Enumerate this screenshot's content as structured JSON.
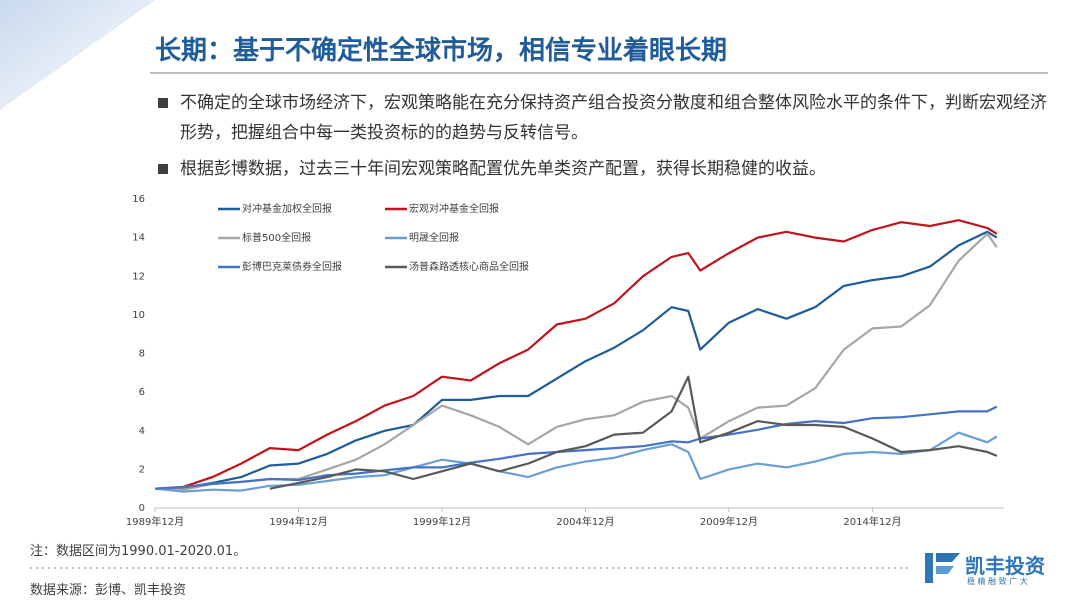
{
  "header": {
    "title": "长期：基于不确定性全球市场，相信专业着眼长期"
  },
  "bullets": [
    "不确定的全球市场经济下，宏观策略能在充分保持资产组合投资分散度和组合整体风险水平的条件下，判断宏观经济形势，把握组合中每一类投资标的的趋势与反转信号。",
    "根据彭博数据，过去三十年间宏观策略配置优先单类资产配置，获得长期稳健的收益。"
  ],
  "notes": [
    "注：数据区间为1990.01-2020.01。",
    "数据来源：彭博、凯丰投资"
  ],
  "logo": {
    "name": "凯丰投资",
    "tagline": "稳 精 融 致 广 大"
  },
  "chart_data": {
    "type": "line",
    "x": [
      1989.917,
      1990.917,
      1991.917,
      1992.917,
      1993.917,
      1994.917,
      1995.917,
      1996.917,
      1997.917,
      1998.917,
      1999.917,
      2000.917,
      2001.917,
      2002.917,
      2003.917,
      2004.917,
      2005.917,
      2006.917,
      2007.917,
      2008.5,
      2008.917,
      2009.917,
      2010.917,
      2011.917,
      2012.917,
      2013.917,
      2014.917,
      2015.917,
      2016.917,
      2017.917,
      2018.917,
      2019.25
    ],
    "series": [
      {
        "name": "对冲基金加权全回报",
        "color": "#1f5c99",
        "values": [
          1,
          1.05,
          1.3,
          1.6,
          2.2,
          2.3,
          2.8,
          3.5,
          4.0,
          4.3,
          5.6,
          5.6,
          5.8,
          5.8,
          6.7,
          7.6,
          8.3,
          9.2,
          10.4,
          10.2,
          8.2,
          9.6,
          10.3,
          9.8,
          10.4,
          11.5,
          11.8,
          12.0,
          12.5,
          13.6,
          14.3,
          14.0
        ]
      },
      {
        "name": "宏观对冲基金全回报",
        "color": "#c0141c",
        "values": [
          1,
          1.1,
          1.6,
          2.3,
          3.1,
          3.0,
          3.8,
          4.5,
          5.3,
          5.8,
          6.8,
          6.6,
          7.5,
          8.2,
          9.5,
          9.8,
          10.6,
          12.0,
          13.0,
          13.2,
          12.3,
          13.2,
          14.0,
          14.3,
          14.0,
          13.8,
          14.4,
          14.8,
          14.6,
          14.9,
          14.5,
          14.2
        ]
      },
      {
        "name": "标普500全回报",
        "color": "#a6a6a6",
        "values": [
          1,
          0.95,
          1.25,
          1.35,
          1.5,
          1.5,
          2.0,
          2.5,
          3.3,
          4.3,
          5.3,
          4.8,
          4.2,
          3.3,
          4.2,
          4.6,
          4.8,
          5.5,
          5.8,
          5.2,
          3.6,
          4.5,
          5.2,
          5.3,
          6.2,
          8.2,
          9.3,
          9.4,
          10.5,
          12.8,
          14.2,
          13.5
        ]
      },
      {
        "name": "明晟全回报",
        "color": "#6a9fd4",
        "values": [
          1,
          0.85,
          0.95,
          0.9,
          1.15,
          1.2,
          1.4,
          1.6,
          1.7,
          2.1,
          2.5,
          2.3,
          1.9,
          1.6,
          2.1,
          2.4,
          2.6,
          3.0,
          3.3,
          2.9,
          1.5,
          2.0,
          2.3,
          2.1,
          2.4,
          2.8,
          2.9,
          2.8,
          3.0,
          3.9,
          3.4,
          3.7
        ]
      },
      {
        "name": "彭博巴克莱债券全回报",
        "color": "#4472c4",
        "values": [
          1,
          1.08,
          1.25,
          1.35,
          1.5,
          1.45,
          1.7,
          1.78,
          1.95,
          2.1,
          2.1,
          2.35,
          2.55,
          2.8,
          2.9,
          3.0,
          3.1,
          3.2,
          3.45,
          3.4,
          3.6,
          3.8,
          4.05,
          4.35,
          4.5,
          4.4,
          4.65,
          4.7,
          4.85,
          5.0,
          5.0,
          5.25
        ]
      },
      {
        "name": "汤普森路透核心商品全回报",
        "color": "#595959",
        "values": [
          null,
          null,
          null,
          null,
          1.0,
          1.3,
          1.6,
          2.0,
          1.9,
          1.5,
          1.9,
          2.3,
          1.9,
          2.3,
          2.9,
          3.2,
          3.8,
          3.9,
          5.0,
          6.8,
          3.4,
          3.9,
          4.5,
          4.3,
          4.3,
          4.2,
          3.6,
          2.9,
          3.0,
          3.2,
          2.9,
          2.7
        ]
      }
    ],
    "xlim": [
      1989.917,
      2019.5
    ],
    "xticks": [
      {
        "value": 1989.917,
        "label": "1989年12月"
      },
      {
        "value": 1994.917,
        "label": "1994年12月"
      },
      {
        "value": 1999.917,
        "label": "1999年12月"
      },
      {
        "value": 2004.917,
        "label": "2004年12月"
      },
      {
        "value": 2009.917,
        "label": "2009年12月"
      },
      {
        "value": 2014.917,
        "label": "2014年12月"
      }
    ],
    "ylim": [
      0,
      16
    ],
    "yticks": [
      0,
      2,
      4,
      6,
      8,
      10,
      12,
      14,
      16
    ],
    "grid": false
  }
}
